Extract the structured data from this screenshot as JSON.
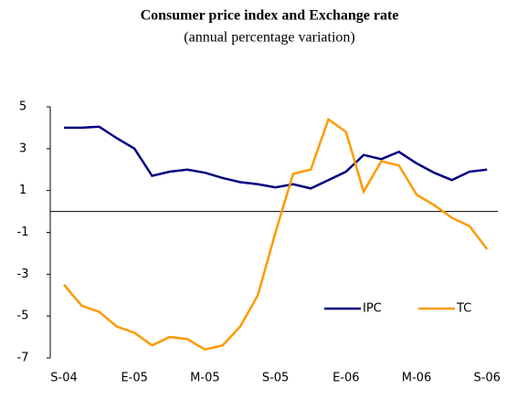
{
  "chart_data": {
    "type": "line",
    "title": "Consumer price index and Exchange rate",
    "subtitle": "(annual percentage variation)",
    "categories": [
      "S-04",
      null,
      null,
      null,
      "E-05",
      null,
      null,
      null,
      "M-05",
      null,
      null,
      null,
      "S-05",
      null,
      null,
      null,
      "E-06",
      null,
      null,
      null,
      "M-06",
      null,
      null,
      null,
      "S-06"
    ],
    "series": [
      {
        "name": "IPC",
        "color": "#000080",
        "values": [
          4.0,
          4.0,
          4.05,
          3.5,
          3.0,
          1.7,
          1.9,
          2.0,
          1.85,
          1.6,
          1.4,
          1.3,
          1.15,
          1.3,
          1.1,
          1.5,
          1.9,
          2.7,
          2.5,
          2.85,
          2.3,
          1.85,
          1.5,
          1.9,
          2.0
        ]
      },
      {
        "name": "TC",
        "color": "#ff9900",
        "values": [
          -3.5,
          -4.5,
          -4.8,
          -5.5,
          -5.8,
          -6.4,
          -6.0,
          -6.1,
          -6.6,
          -6.4,
          -5.5,
          -4.0,
          -1.0,
          1.8,
          2.0,
          4.4,
          3.8,
          0.95,
          2.4,
          2.2,
          0.8,
          0.3,
          -0.3,
          -0.7,
          -1.8
        ]
      }
    ],
    "ylim": [
      -7,
      5
    ],
    "yticks": [
      5,
      3,
      1,
      -1,
      -3,
      -5,
      -7
    ],
    "legend": "lower-right"
  }
}
